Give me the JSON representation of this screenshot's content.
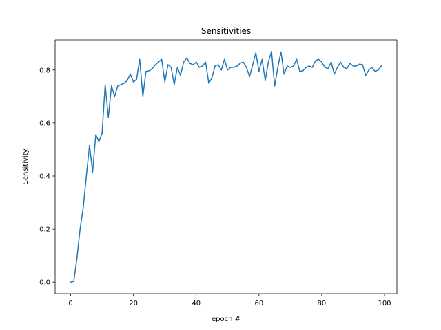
{
  "chart_data": {
    "type": "line",
    "title": "Sensitivities",
    "xlabel": "epoch #",
    "ylabel": "Sensitivity",
    "xlim": [
      -4.95,
      103.95
    ],
    "ylim": [
      -0.0435,
      0.9135
    ],
    "xticks": [
      0,
      20,
      40,
      60,
      80,
      100
    ],
    "yticks": [
      0.0,
      0.2,
      0.4,
      0.6,
      0.8
    ],
    "xtick_labels": [
      "0",
      "20",
      "40",
      "60",
      "80",
      "100"
    ],
    "ytick_labels": [
      "0.0",
      "0.2",
      "0.4",
      "0.6",
      "0.8"
    ],
    "grid": false,
    "series": [
      {
        "color": "#1f77b4",
        "x": [
          0,
          1,
          2,
          3,
          4,
          5,
          6,
          7,
          8,
          9,
          10,
          11,
          12,
          13,
          14,
          15,
          16,
          17,
          18,
          19,
          20,
          21,
          22,
          23,
          24,
          25,
          26,
          27,
          28,
          29,
          30,
          31,
          32,
          33,
          34,
          35,
          36,
          37,
          38,
          39,
          40,
          41,
          42,
          43,
          44,
          45,
          46,
          47,
          48,
          49,
          50,
          51,
          52,
          53,
          54,
          55,
          56,
          57,
          58,
          59,
          60,
          61,
          62,
          63,
          64,
          65,
          66,
          67,
          68,
          69,
          70,
          71,
          72,
          73,
          74,
          75,
          76,
          77,
          78,
          79,
          80,
          81,
          82,
          83,
          84,
          85,
          86,
          87,
          88,
          89,
          90,
          91,
          92,
          93,
          94,
          95,
          96,
          97,
          98,
          99
        ],
        "values": [
          0.0,
          0.003,
          0.09,
          0.2,
          0.28,
          0.4,
          0.515,
          0.415,
          0.555,
          0.53,
          0.56,
          0.745,
          0.62,
          0.74,
          0.7,
          0.74,
          0.745,
          0.75,
          0.76,
          0.785,
          0.755,
          0.765,
          0.84,
          0.7,
          0.795,
          0.797,
          0.805,
          0.82,
          0.83,
          0.84,
          0.755,
          0.82,
          0.81,
          0.745,
          0.81,
          0.78,
          0.83,
          0.845,
          0.825,
          0.82,
          0.83,
          0.81,
          0.815,
          0.83,
          0.75,
          0.77,
          0.815,
          0.82,
          0.8,
          0.84,
          0.8,
          0.81,
          0.81,
          0.815,
          0.825,
          0.83,
          0.81,
          0.775,
          0.82,
          0.865,
          0.795,
          0.84,
          0.76,
          0.83,
          0.87,
          0.74,
          0.81,
          0.868,
          0.785,
          0.815,
          0.81,
          0.815,
          0.84,
          0.795,
          0.797,
          0.81,
          0.815,
          0.81,
          0.835,
          0.84,
          0.83,
          0.81,
          0.805,
          0.83,
          0.785,
          0.81,
          0.83,
          0.81,
          0.805,
          0.825,
          0.815,
          0.815,
          0.822,
          0.82,
          0.78,
          0.8,
          0.81,
          0.795,
          0.8,
          0.815
        ]
      }
    ]
  }
}
